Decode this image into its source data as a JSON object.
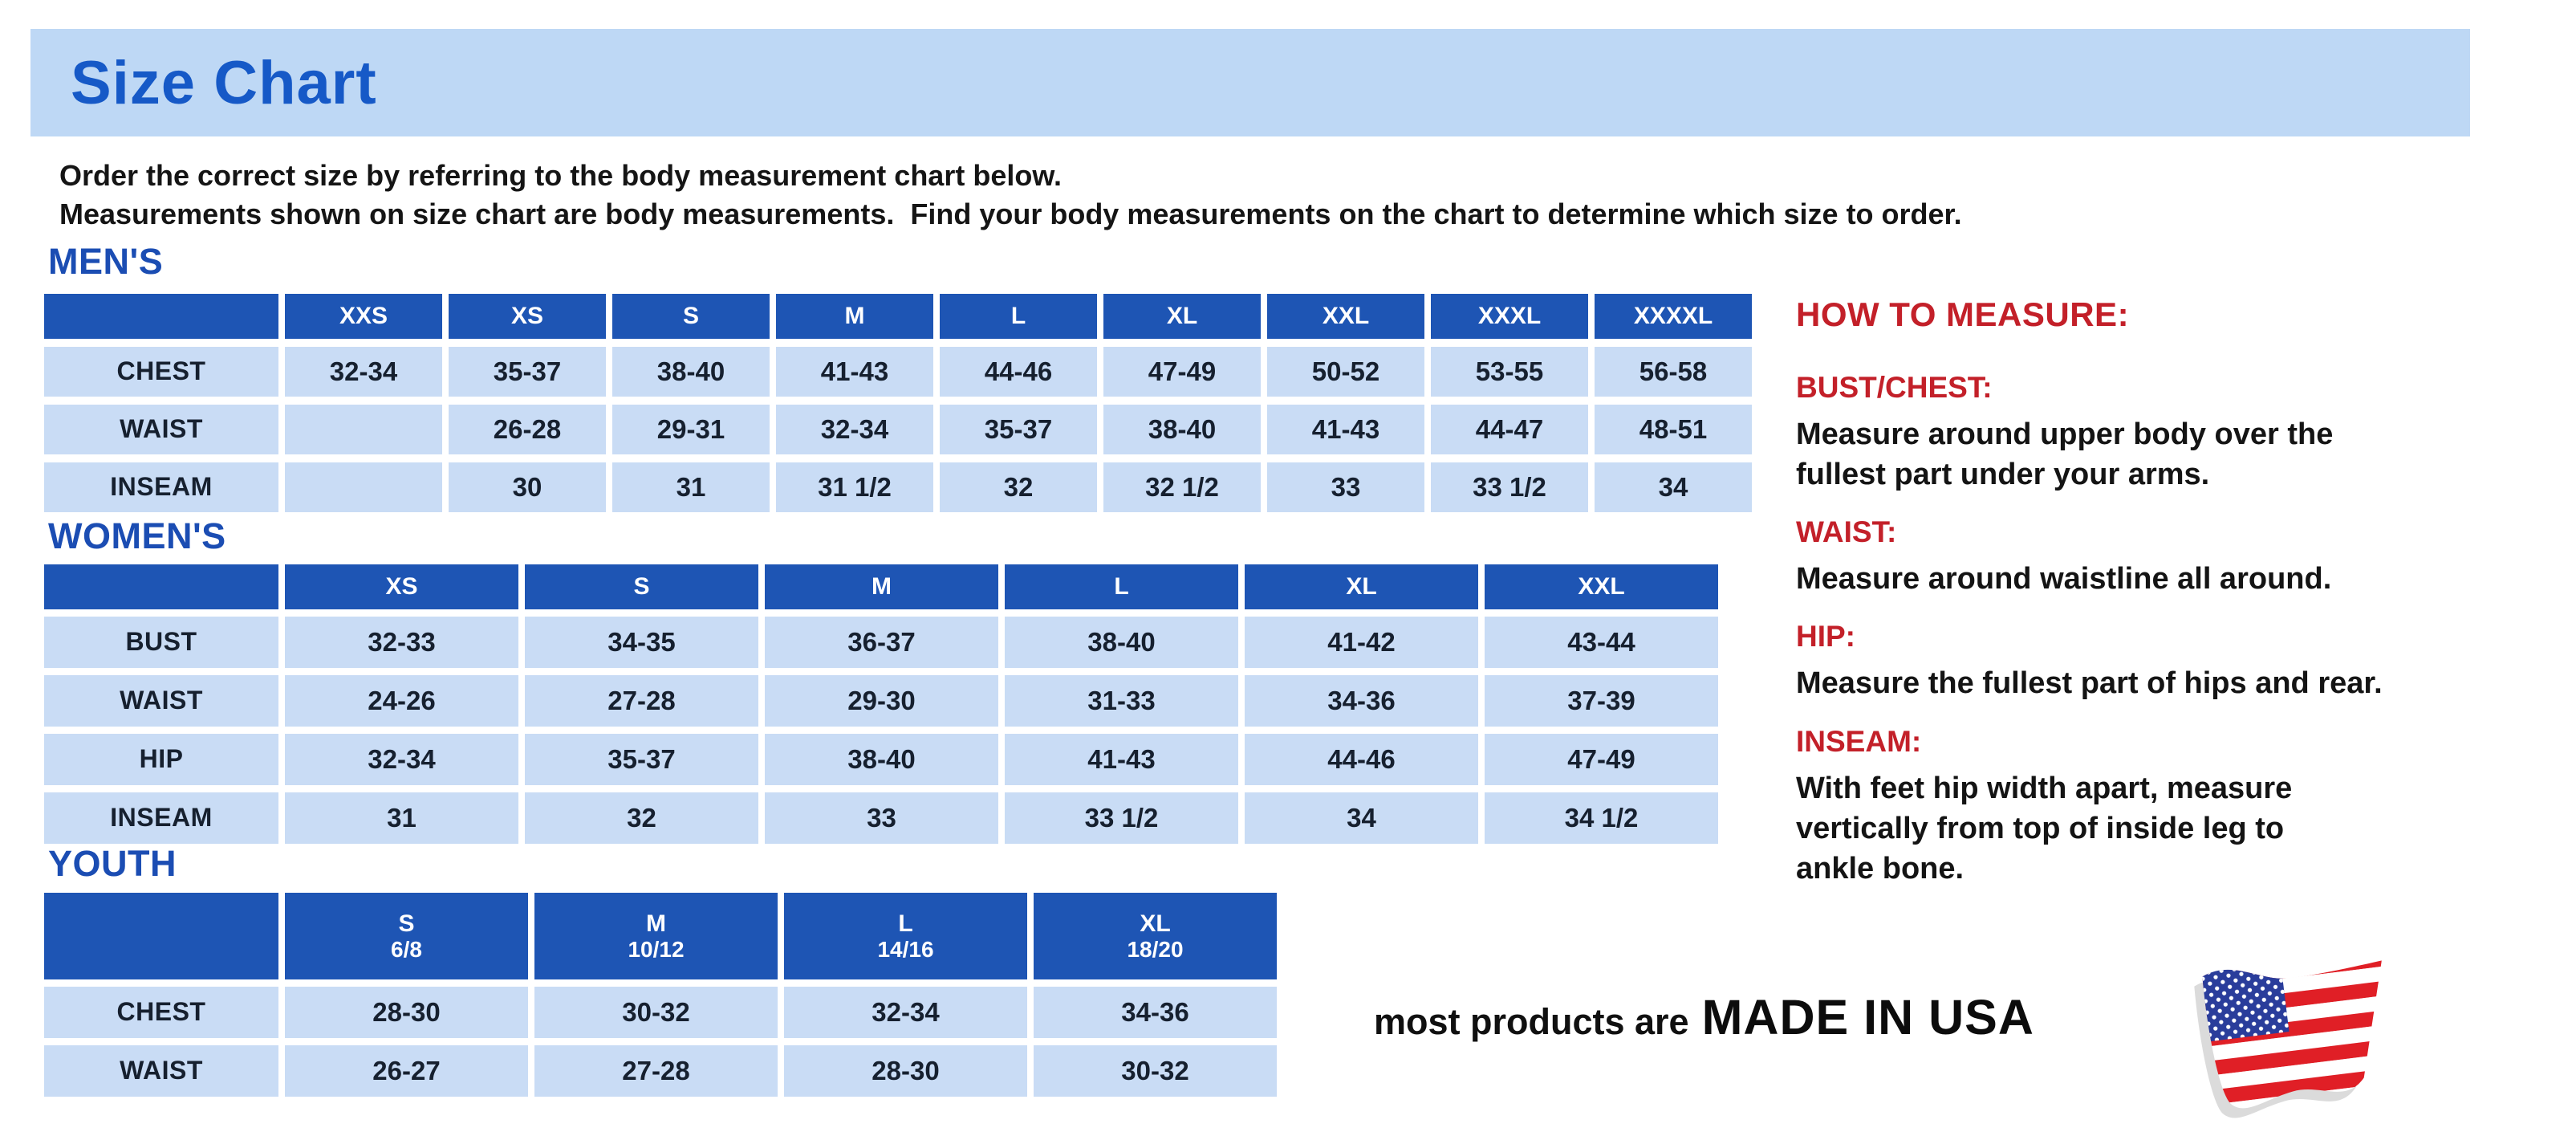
{
  "page": {
    "title": "Size Chart",
    "intro_line1": "Order the correct size by referring to the body measurement chart below.",
    "intro_line2": "Measurements shown on size chart are body measurements.  Find your body measurements on the chart to determine which size to order."
  },
  "colors": {
    "banner_bg": "#bed8f5",
    "title_blue": "#1659c7",
    "section_blue": "#1b4db3",
    "header_blue": "#1e55b4",
    "cell_bg": "#c9dcf5",
    "cell_text": "#16202f",
    "accent_red": "#c32029",
    "text_dark": "#121212",
    "flag_red": "#e01f26",
    "flag_blue": "#2a3d9b"
  },
  "tables": [
    {
      "id": "mens",
      "section": "MEN'S",
      "columns": [
        {
          "label": "XXS",
          "sub": ""
        },
        {
          "label": "XS",
          "sub": ""
        },
        {
          "label": "S",
          "sub": ""
        },
        {
          "label": "M",
          "sub": ""
        },
        {
          "label": "L",
          "sub": ""
        },
        {
          "label": "XL",
          "sub": ""
        },
        {
          "label": "XXL",
          "sub": ""
        },
        {
          "label": "XXXL",
          "sub": ""
        },
        {
          "label": "XXXXL",
          "sub": ""
        }
      ],
      "rows": [
        {
          "label": "CHEST",
          "values": [
            "32-34",
            "35-37",
            "38-40",
            "41-43",
            "44-46",
            "47-49",
            "50-52",
            "53-55",
            "56-58"
          ]
        },
        {
          "label": "WAIST",
          "values": [
            "",
            "26-28",
            "29-31",
            "32-34",
            "35-37",
            "38-40",
            "41-43",
            "44-47",
            "48-51"
          ]
        },
        {
          "label": "INSEAM",
          "values": [
            "",
            "30",
            "31",
            "31 1/2",
            "32",
            "32 1/2",
            "33",
            "33 1/2",
            "34"
          ]
        }
      ]
    },
    {
      "id": "womens",
      "section": "WOMEN'S",
      "columns": [
        {
          "label": "XS",
          "sub": ""
        },
        {
          "label": "S",
          "sub": ""
        },
        {
          "label": "M",
          "sub": ""
        },
        {
          "label": "L",
          "sub": ""
        },
        {
          "label": "XL",
          "sub": ""
        },
        {
          "label": "XXL",
          "sub": ""
        }
      ],
      "rows": [
        {
          "label": "BUST",
          "values": [
            "32-33",
            "34-35",
            "36-37",
            "38-40",
            "41-42",
            "43-44"
          ]
        },
        {
          "label": "WAIST",
          "values": [
            "24-26",
            "27-28",
            "29-30",
            "31-33",
            "34-36",
            "37-39"
          ]
        },
        {
          "label": "HIP",
          "values": [
            "32-34",
            "35-37",
            "38-40",
            "41-43",
            "44-46",
            "47-49"
          ]
        },
        {
          "label": "INSEAM",
          "values": [
            "31",
            "32",
            "33",
            "33 1/2",
            "34",
            "34 1/2"
          ]
        }
      ]
    },
    {
      "id": "youth",
      "section": "YOUTH",
      "columns": [
        {
          "label": "S",
          "sub": "6/8"
        },
        {
          "label": "M",
          "sub": "10/12"
        },
        {
          "label": "L",
          "sub": "14/16"
        },
        {
          "label": "XL",
          "sub": "18/20"
        }
      ],
      "rows": [
        {
          "label": "CHEST",
          "values": [
            "28-30",
            "30-32",
            "32-34",
            "34-36"
          ]
        },
        {
          "label": "WAIST",
          "values": [
            "26-27",
            "27-28",
            "28-30",
            "30-32"
          ]
        }
      ]
    }
  ],
  "how_to_measure": {
    "title": "HOW TO MEASURE:",
    "items": [
      {
        "label": "BUST/CHEST:",
        "text": "Measure around upper body over the\nfullest part under your arms."
      },
      {
        "label": "WAIST:",
        "text": "Measure around waistline all around."
      },
      {
        "label": "HIP:",
        "text": "Measure the fullest part of hips and rear."
      },
      {
        "label": "INSEAM:",
        "text": "With feet hip width apart, measure\nvertically from top of inside leg to\nankle bone."
      }
    ]
  },
  "footer": {
    "prefix": "most products are",
    "made_in": "MADE IN USA",
    "flag_icon": "us-flag-icon"
  }
}
